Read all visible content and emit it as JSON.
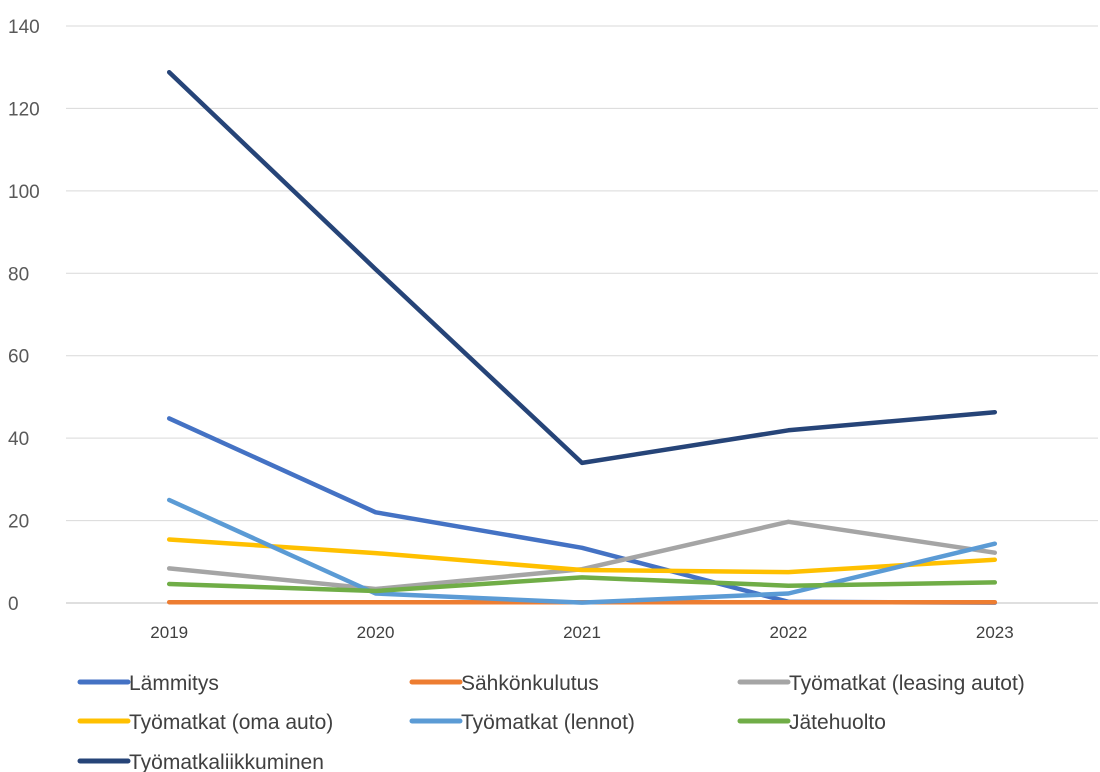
{
  "chart_data": {
    "type": "line",
    "title": "",
    "xlabel": "",
    "ylabel": "",
    "categories": [
      "2019",
      "2020",
      "2021",
      "2022",
      "2023"
    ],
    "ylim": [
      0,
      140
    ],
    "yticks": [
      "0",
      "20",
      "40",
      "60",
      "80",
      "100",
      "120",
      "140"
    ],
    "grid": true,
    "legend_position": "bottom",
    "series": [
      {
        "name": "Lämmitys",
        "color": "#4472C4",
        "values": [
          44.8,
          22.0,
          13.4,
          0.3,
          0.1
        ]
      },
      {
        "name": "Sähkönkulutus",
        "color": "#ED7D31",
        "values": [
          0.2,
          0.2,
          0.2,
          0.2,
          0.2
        ]
      },
      {
        "name": "Työmatkat (leasing autot)",
        "color": "#A5A5A5",
        "values": [
          8.4,
          3.4,
          8.2,
          19.7,
          12.2
        ]
      },
      {
        "name": "Työmatkat (oma auto)",
        "color": "#FFC000",
        "values": [
          15.4,
          12.1,
          8.0,
          7.5,
          10.5
        ]
      },
      {
        "name": "Työmatkat (lennot)",
        "color": "#5B9BD5",
        "values": [
          25.0,
          2.3,
          0.1,
          2.3,
          14.4
        ]
      },
      {
        "name": "Jätehuolto",
        "color": "#70AD47",
        "values": [
          4.6,
          2.9,
          6.2,
          4.2,
          5.0
        ]
      },
      {
        "name": "Työmatkaliikkuminen",
        "color": "#264478",
        "values": [
          128.8,
          81.0,
          34.0,
          41.9,
          46.3
        ]
      }
    ]
  }
}
